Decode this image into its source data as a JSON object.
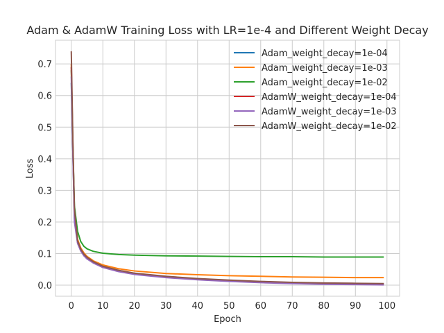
{
  "chart_data": {
    "type": "line",
    "title": "Adam & AdamW Training Loss with LR=1e-4 and Different Weight Decay",
    "xlabel": "Epoch",
    "ylabel": "Loss",
    "xlim": [
      -5,
      104
    ],
    "ylim": [
      -0.035,
      0.775
    ],
    "xticks": [
      0,
      10,
      20,
      30,
      40,
      50,
      60,
      70,
      80,
      90,
      100
    ],
    "yticks": [
      0.0,
      0.1,
      0.2,
      0.3,
      0.4,
      0.5,
      0.6,
      0.7
    ],
    "ytick_labels": [
      "0.0",
      "0.1",
      "0.2",
      "0.3",
      "0.4",
      "0.5",
      "0.6",
      "0.7"
    ],
    "grid": true,
    "legend_position": "top-right",
    "series": [
      {
        "name": "Adam_weight_decay=1e-04",
        "color": "#1f77b4",
        "x": [
          0,
          0.5,
          1,
          2,
          3,
          4,
          5,
          7,
          10,
          15,
          20,
          30,
          40,
          50,
          60,
          70,
          80,
          90,
          99
        ],
        "y": [
          0.64,
          0.42,
          0.21,
          0.135,
          0.11,
          0.095,
          0.085,
          0.072,
          0.058,
          0.045,
          0.036,
          0.026,
          0.019,
          0.014,
          0.01,
          0.007,
          0.005,
          0.004,
          0.003
        ]
      },
      {
        "name": "Adam_weight_decay=1e-03",
        "color": "#ff7f0e",
        "x": [
          0,
          0.5,
          1,
          2,
          3,
          4,
          5,
          7,
          10,
          15,
          20,
          30,
          40,
          50,
          60,
          70,
          80,
          90,
          99
        ],
        "y": [
          0.7,
          0.45,
          0.23,
          0.145,
          0.118,
          0.102,
          0.091,
          0.077,
          0.064,
          0.052,
          0.045,
          0.037,
          0.033,
          0.03,
          0.028,
          0.026,
          0.025,
          0.024,
          0.024
        ]
      },
      {
        "name": "Adam_weight_decay=1e-02",
        "color": "#2ca02c",
        "x": [
          0,
          0.5,
          1,
          2,
          3,
          4,
          5,
          7,
          10,
          15,
          20,
          30,
          40,
          50,
          60,
          70,
          80,
          90,
          99
        ],
        "y": [
          0.68,
          0.44,
          0.25,
          0.17,
          0.138,
          0.123,
          0.115,
          0.107,
          0.101,
          0.097,
          0.095,
          0.093,
          0.092,
          0.091,
          0.09,
          0.09,
          0.089,
          0.089,
          0.089
        ]
      },
      {
        "name": "AdamW_weight_decay=1e-04",
        "color": "#d62728",
        "x": [
          0,
          0.5,
          1,
          2,
          3,
          4,
          5,
          7,
          10,
          15,
          20,
          30,
          40,
          50,
          60,
          70,
          80,
          90,
          99
        ],
        "y": [
          0.69,
          0.43,
          0.22,
          0.138,
          0.112,
          0.096,
          0.086,
          0.073,
          0.059,
          0.046,
          0.037,
          0.027,
          0.02,
          0.015,
          0.011,
          0.008,
          0.006,
          0.005,
          0.004
        ]
      },
      {
        "name": "AdamW_weight_decay=1e-03",
        "color": "#9467bd",
        "x": [
          0,
          0.5,
          1,
          2,
          3,
          4,
          5,
          7,
          10,
          15,
          20,
          30,
          40,
          50,
          60,
          70,
          80,
          90,
          99
        ],
        "y": [
          0.66,
          0.42,
          0.2,
          0.132,
          0.108,
          0.093,
          0.083,
          0.07,
          0.056,
          0.043,
          0.034,
          0.024,
          0.017,
          0.012,
          0.008,
          0.005,
          0.003,
          0.002,
          0.001
        ]
      },
      {
        "name": "AdamW_weight_decay=1e-02",
        "color": "#8c564b",
        "x": [
          0,
          0.5,
          1,
          2,
          3,
          4,
          5,
          7,
          10,
          15,
          20,
          30,
          40,
          50,
          60,
          70,
          80,
          90,
          99
        ],
        "y": [
          0.74,
          0.46,
          0.24,
          0.14,
          0.114,
          0.098,
          0.088,
          0.074,
          0.06,
          0.047,
          0.038,
          0.028,
          0.021,
          0.016,
          0.012,
          0.009,
          0.007,
          0.006,
          0.005
        ]
      }
    ]
  }
}
